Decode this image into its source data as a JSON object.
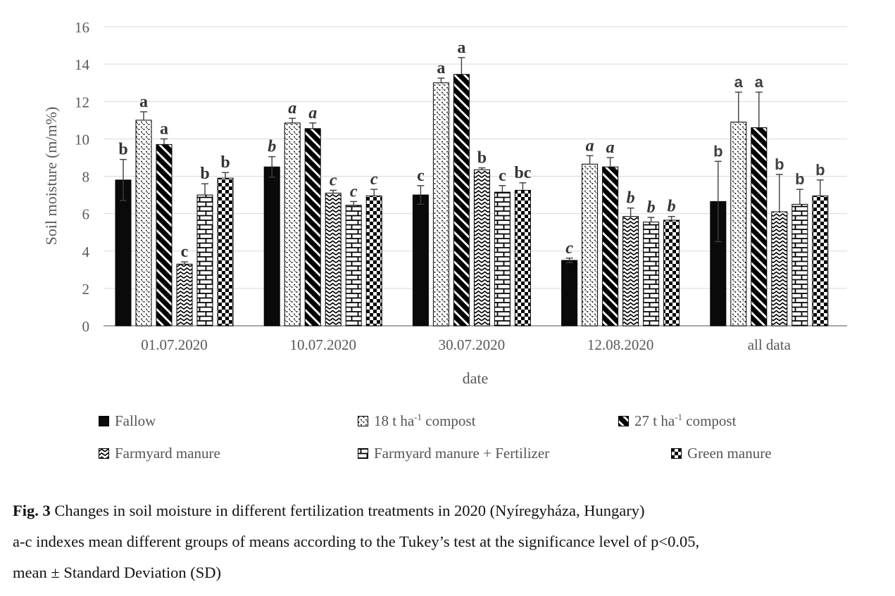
{
  "caption": {
    "prefix": "Fig. 3",
    "line1": " Changes in soil moisture in different fertilization treatments in 2020 (Nyíregyháza, Hungary)",
    "line2": "a-c indexes mean different groups of means according to the Tukey’s test at the significance level of p<0.05,",
    "line3": "mean ± Standard Deviation (SD)"
  },
  "legend": {
    "items": [
      {
        "pre": "Fallow",
        "sup": "",
        "post": "",
        "pattern": "solid"
      },
      {
        "pre": "18 t ha",
        "sup": "-1",
        "post": " compost",
        "pattern": "dots"
      },
      {
        "pre": "27 t ha",
        "sup": "-1",
        "post": " compost",
        "pattern": "diag"
      },
      {
        "pre": "Farmyard manure",
        "sup": "",
        "post": "",
        "pattern": "wave"
      },
      {
        "pre": "Farmyard manure + Fertilizer",
        "sup": "",
        "post": "",
        "pattern": "brick"
      },
      {
        "pre": "Green manure",
        "sup": "",
        "post": "",
        "pattern": "checker"
      }
    ]
  },
  "chart_data": {
    "type": "bar",
    "title": "",
    "xlabel": "date",
    "ylabel": "Soil moisture (m/m%)",
    "ylim": [
      0,
      16
    ],
    "yticks": [
      0,
      2,
      4,
      6,
      8,
      10,
      12,
      14,
      16
    ],
    "grid": true,
    "legend_position": "bottom",
    "categories": [
      "01.07.2020",
      "10.07.2020",
      "30.07.2020",
      "12.08.2020",
      "all data"
    ],
    "letter_styles": [
      "bold",
      "italic",
      "bold",
      "italic",
      "sans"
    ],
    "series": [
      {
        "name": "Fallow",
        "pattern": "solid",
        "minus_error": true,
        "values": [
          7.8,
          8.5,
          7.0,
          3.5,
          6.65
        ],
        "sd": [
          1.1,
          0.55,
          0.5,
          0.12,
          2.15
        ],
        "letters": [
          "b",
          "b",
          "c",
          "c",
          "b"
        ]
      },
      {
        "name": "18 t ha-1 compost",
        "pattern": "dots",
        "minus_error": false,
        "values": [
          11.0,
          10.85,
          13.0,
          8.65,
          10.9
        ],
        "sd": [
          0.45,
          0.25,
          0.25,
          0.45,
          1.6
        ],
        "letters": [
          "a",
          "a",
          "a",
          "a",
          "a"
        ]
      },
      {
        "name": "27 t ha-1 compost",
        "pattern": "diag",
        "minus_error": false,
        "values": [
          9.7,
          10.55,
          13.45,
          8.5,
          10.6
        ],
        "sd": [
          0.3,
          0.3,
          0.9,
          0.5,
          1.9
        ],
        "letters": [
          "a",
          "a",
          "a",
          "a",
          "a"
        ]
      },
      {
        "name": "Farmyard manure",
        "pattern": "wave",
        "minus_error": false,
        "values": [
          3.3,
          7.1,
          8.35,
          5.85,
          6.1
        ],
        "sd": [
          0.12,
          0.15,
          0.1,
          0.45,
          2.0
        ],
        "letters": [
          "c",
          "c",
          "b",
          "b",
          "b"
        ]
      },
      {
        "name": "Farmyard manure + Fertilizer",
        "pattern": "brick",
        "minus_error": false,
        "values": [
          7.0,
          6.45,
          7.15,
          5.55,
          6.5
        ],
        "sd": [
          0.6,
          0.2,
          0.35,
          0.25,
          0.8
        ],
        "letters": [
          "b",
          "c",
          "c",
          "b",
          "b"
        ]
      },
      {
        "name": "Green manure",
        "pattern": "checker",
        "minus_error": false,
        "values": [
          7.9,
          6.95,
          7.25,
          5.65,
          6.95
        ],
        "sd": [
          0.3,
          0.35,
          0.4,
          0.2,
          0.85
        ],
        "letters": [
          "b",
          "c",
          "bc",
          "b",
          "b"
        ]
      }
    ]
  }
}
